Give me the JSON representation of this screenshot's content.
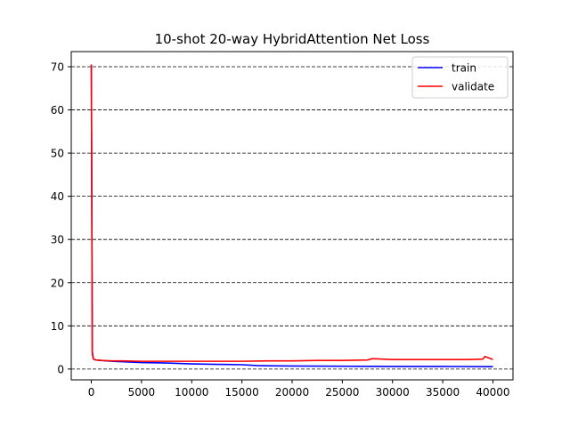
{
  "chart_data": {
    "type": "line",
    "title": "10-shot 20-way HybridAttention Net Loss",
    "xlabel": "",
    "ylabel": "",
    "xlim": [
      -2000,
      42000
    ],
    "ylim": [
      -2.5,
      73.5
    ],
    "xticks": [
      0,
      5000,
      10000,
      15000,
      20000,
      25000,
      30000,
      35000,
      40000
    ],
    "xtick_labels": [
      "0",
      "5000",
      "10000",
      "15000",
      "20000",
      "25000",
      "30000",
      "35000",
      "40000"
    ],
    "yticks": [
      0,
      10,
      20,
      30,
      40,
      50,
      60,
      70
    ],
    "ytick_labels": [
      "0",
      "10",
      "20",
      "30",
      "40",
      "50",
      "60",
      "70"
    ],
    "grid": "horizontal dashed",
    "legend_position": "top-right",
    "series": [
      {
        "name": "train",
        "color": "#0000ff",
        "x": [
          0,
          100,
          200,
          300,
          500,
          1000,
          2000,
          3000,
          5000,
          7500,
          10000,
          12500,
          15000,
          16500,
          17500,
          20000,
          25000,
          30000,
          35000,
          40000
        ],
        "y": [
          70.5,
          4.0,
          2.4,
          2.2,
          2.1,
          2.0,
          1.8,
          1.7,
          1.5,
          1.4,
          1.2,
          1.1,
          1.0,
          0.8,
          0.75,
          0.7,
          0.65,
          0.6,
          0.6,
          0.55
        ]
      },
      {
        "name": "validate",
        "color": "#ff0000",
        "x": [
          0,
          100,
          200,
          300,
          500,
          1000,
          2000,
          3000,
          5000,
          7500,
          10000,
          12500,
          15000,
          17500,
          20000,
          22500,
          25000,
          27500,
          28000,
          30000,
          32500,
          35000,
          37500,
          39000,
          39200,
          40000
        ],
        "y": [
          70.5,
          3.5,
          2.4,
          2.2,
          2.1,
          2.0,
          1.9,
          1.9,
          1.8,
          1.8,
          1.8,
          1.8,
          1.8,
          1.9,
          1.9,
          2.0,
          2.0,
          2.1,
          2.4,
          2.2,
          2.2,
          2.2,
          2.2,
          2.3,
          2.9,
          2.2
        ]
      }
    ]
  }
}
